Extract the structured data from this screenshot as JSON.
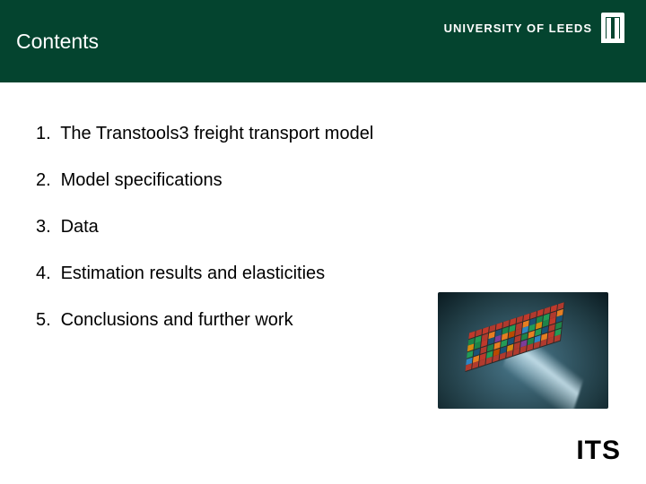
{
  "header": {
    "title": "Contents",
    "logo_text": "UNIVERSITY OF LEEDS",
    "bg_color": "#04442f",
    "text_color": "#ffffff"
  },
  "list": {
    "items": [
      {
        "num": "1.",
        "text": "The Transtools3 freight transport model"
      },
      {
        "num": "2.",
        "text": "Model specifications"
      },
      {
        "num": "3.",
        "text": "Data"
      },
      {
        "num": "4.",
        "text": "Estimation results and elasticities"
      },
      {
        "num": "5.",
        "text": "Conclusions and further work"
      }
    ],
    "font_size": 20,
    "item_spacing": 26,
    "text_color": "#000000"
  },
  "ship_image": {
    "container_colors": [
      "#c0392b",
      "#e67e22",
      "#2e86c1",
      "#1e8449",
      "#7d3c98",
      "#b03a2e",
      "#d68910",
      "#1a5276",
      "#ba4a00",
      "#239b56"
    ],
    "ocean_center": "#4b7a8e",
    "ocean_edge": "#0a1a20",
    "rows": 6,
    "cols": 14
  },
  "footer": {
    "its_label": "ITS"
  }
}
